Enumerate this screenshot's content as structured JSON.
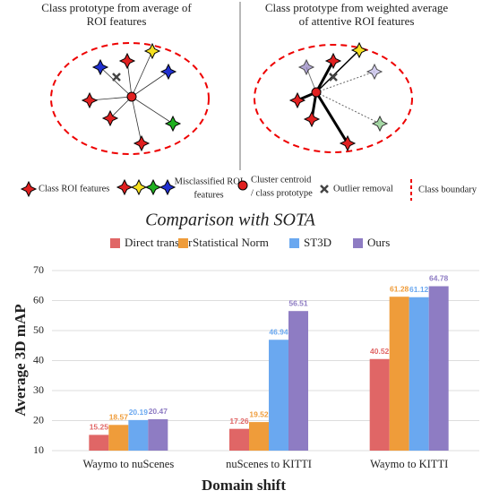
{
  "diagram": {
    "left_title_lines": [
      "Class prototype from average of",
      "ROI features"
    ],
    "right_title_lines": [
      "Class prototype from weighted average",
      "of attentive ROI features"
    ],
    "legend": {
      "class_roi": "Class ROI features",
      "misclassified_lines": [
        "Misclassified ROI",
        "features"
      ],
      "centroid_lines": [
        "Cluster centroid",
        "/ class prototype"
      ],
      "outlier": "Outlier removal",
      "boundary": "Class boundary"
    }
  },
  "chart_data": {
    "type": "bar",
    "title": "Comparison with SOTA",
    "x_label": "Domain shift",
    "y_label": "Average 3D mAP",
    "categories": [
      "Waymo to nuScenes",
      "nuScenes to KITTI",
      "Waymo to KITTI"
    ],
    "series": [
      {
        "name": "Direct transfer",
        "color": "#e06666",
        "values": [
          15.25,
          17.26,
          40.52
        ]
      },
      {
        "name": "Statistical Norm",
        "color": "#ef9c3a",
        "values": [
          18.57,
          19.52,
          61.28
        ]
      },
      {
        "name": "ST3D",
        "color": "#6aa8f0",
        "values": [
          20.19,
          46.94,
          61.12
        ]
      },
      {
        "name": "Ours",
        "color": "#8e7cc3",
        "values": [
          20.47,
          56.51,
          64.78
        ]
      }
    ],
    "ylim": [
      10,
      70
    ],
    "yticks": [
      10,
      20,
      30,
      40,
      50,
      60,
      70
    ],
    "grid": true,
    "legend": "top"
  }
}
